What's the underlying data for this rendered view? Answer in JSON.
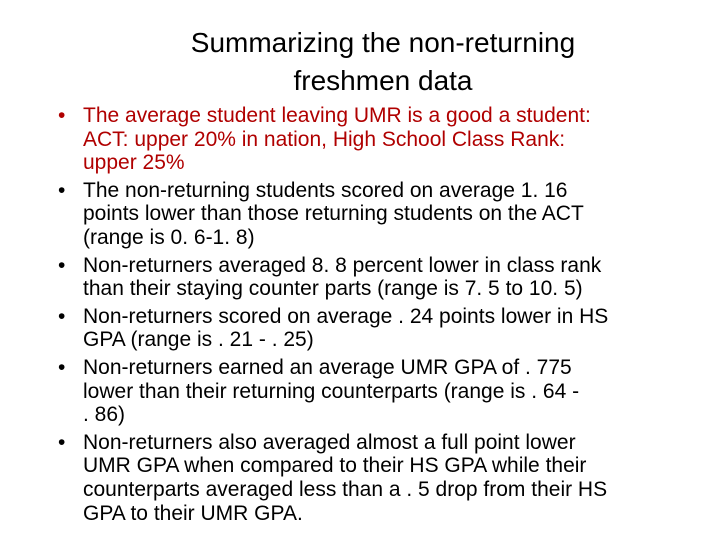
{
  "title": {
    "lines": [
      "Summarizing the non-returning",
      "freshmen data"
    ]
  },
  "accent_color": "#b00000",
  "bullets": [
    {
      "lines": [
        "The average student leaving UMR is a good a student:",
        "ACT: upper 20% in nation, High School Class Rank:",
        "upper 25%"
      ]
    },
    {
      "lines": [
        "The non-returning students scored on average 1. 16",
        "points lower than those returning students on the ACT",
        "(range is 0. 6-1. 8)"
      ]
    },
    {
      "lines": [
        "Non-returners averaged 8. 8 percent lower in class rank",
        "than their staying counter parts (range is 7. 5 to 10. 5)"
      ]
    },
    {
      "lines": [
        "Non-returners scored on average . 24 points lower in HS",
        "GPA (range is . 21 - . 25)"
      ]
    },
    {
      "lines": [
        "Non-returners earned an average UMR GPA of . 775",
        "lower than their returning counterparts (range is . 64 -",
        ". 86)"
      ]
    },
    {
      "lines": [
        "Non-returners also averaged almost a full point lower",
        "UMR GPA when compared to their HS GPA while their",
        "counterparts averaged less than a . 5 drop from their HS",
        "GPA to their UMR GPA."
      ]
    }
  ],
  "bullet_glyph": "•"
}
